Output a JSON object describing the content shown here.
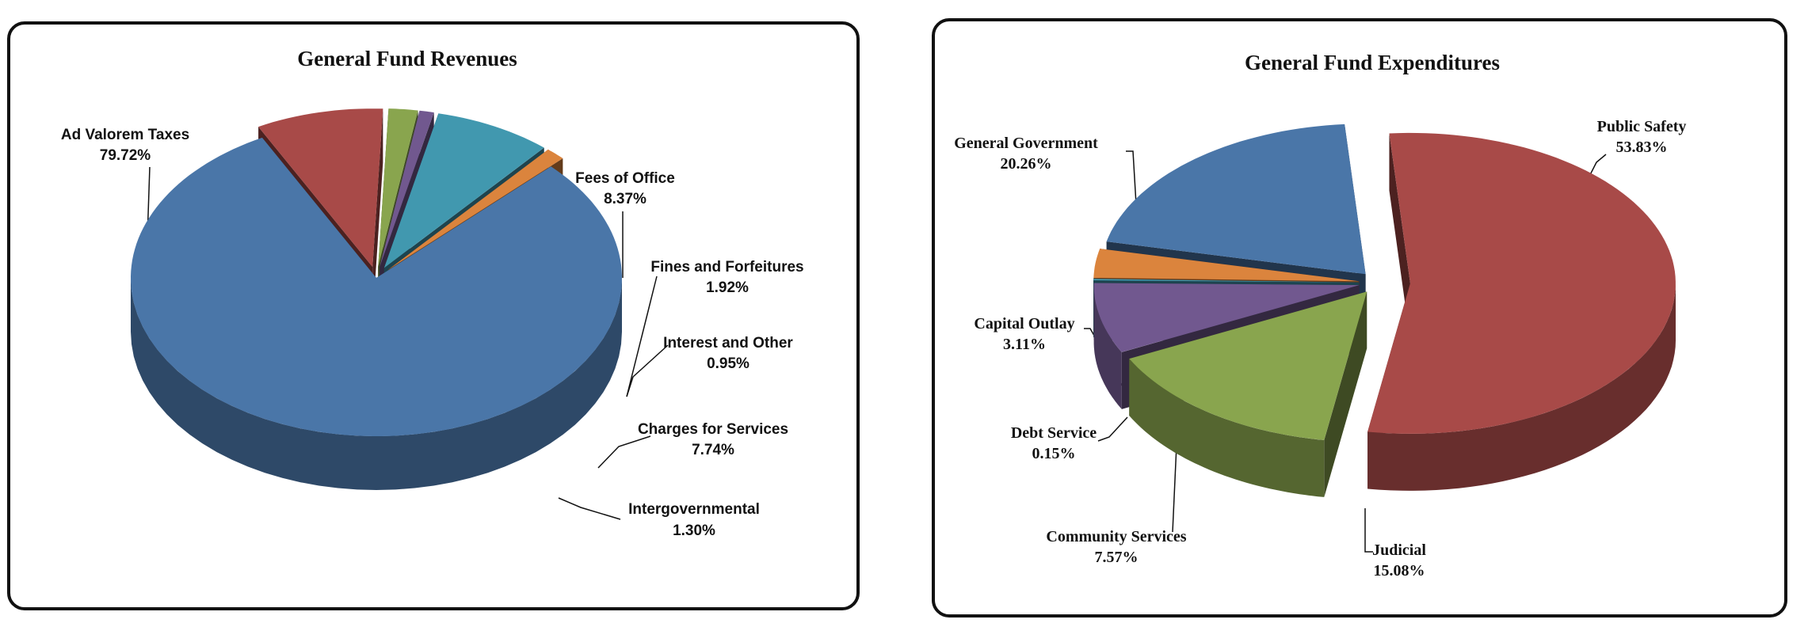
{
  "chart_data": [
    {
      "type": "pie",
      "title": "General Fund Revenues",
      "slices": [
        {
          "label": "Ad Valorem Taxes",
          "value_label": "79.72%",
          "value": 79.72,
          "color": "#4a76a8"
        },
        {
          "label": "Fees of Office",
          "value_label": "8.37%",
          "value": 8.37,
          "color": "#a84a48"
        },
        {
          "label": "Fines and Forfeitures",
          "value_label": "1.92%",
          "value": 1.92,
          "color": "#89a54e"
        },
        {
          "label": "Interest and Other",
          "value_label": "0.95%",
          "value": 0.95,
          "color": "#71588f"
        },
        {
          "label": "Charges for Services",
          "value_label": "7.74%",
          "value": 7.74,
          "color": "#4198af"
        },
        {
          "label": "Intergovernmental",
          "value_label": "1.30%",
          "value": 1.3,
          "color": "#db843d"
        }
      ]
    },
    {
      "type": "pie",
      "title": "General Fund Expenditures",
      "slices": [
        {
          "label": "Public Safety",
          "value_label": "53.83%",
          "value": 53.83,
          "color": "#a84a48"
        },
        {
          "label": "Judicial",
          "value_label": "15.08%",
          "value": 15.08,
          "color": "#89a54e"
        },
        {
          "label": "Community Services",
          "value_label": "7.57%",
          "value": 7.57,
          "color": "#71588f"
        },
        {
          "label": "Debt Service",
          "value_label": "0.15%",
          "value": 0.15,
          "color": "#4198af"
        },
        {
          "label": "Capital Outlay",
          "value_label": "3.11%",
          "value": 3.11,
          "color": "#db843d"
        },
        {
          "label": "General Government",
          "value_label": "20.26%",
          "value": 20.26,
          "color": "#4a76a8"
        }
      ]
    }
  ]
}
